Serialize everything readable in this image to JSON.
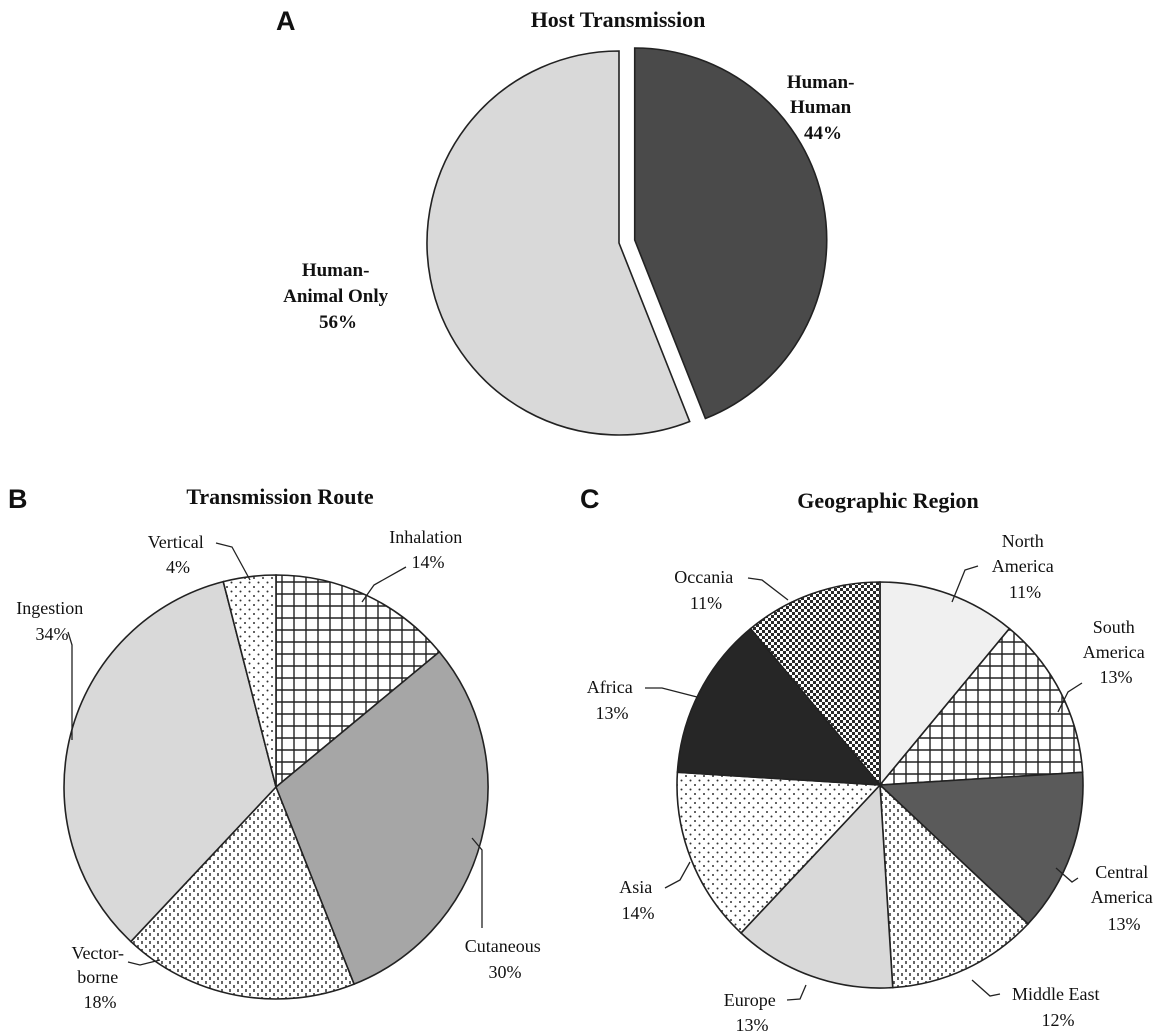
{
  "colors": {
    "dark": "#4a4a4a",
    "light": "#d9d9d9",
    "mid": "#a6a6a6",
    "black": "#262626",
    "slate": "#5a5a5a",
    "verylight": "#f0f0f0",
    "outline": "#222222"
  },
  "chart_data": [
    {
      "panel": "A",
      "type": "pie",
      "title": "Host Transmission",
      "slices": [
        {
          "label_lines": [
            "Human-",
            "Human"
          ],
          "value": 44,
          "value_label": "44%",
          "fill": "dark",
          "pattern": "solid",
          "exploded": true
        },
        {
          "label_lines": [
            "Human-",
            "Animal Only"
          ],
          "value": 56,
          "value_label": "56%",
          "fill": "light",
          "pattern": "solid",
          "exploded": false
        }
      ]
    },
    {
      "panel": "B",
      "type": "pie",
      "title": "Transmission Route",
      "slices": [
        {
          "label_lines": [
            "Inhalation"
          ],
          "value": 14,
          "value_label": "14%",
          "pattern": "grid"
        },
        {
          "label_lines": [
            "Cutaneous"
          ],
          "value": 30,
          "value_label": "30%",
          "fill": "mid",
          "pattern": "solid"
        },
        {
          "label_lines": [
            "Vector-",
            "borne"
          ],
          "value": 18,
          "value_label": "18%",
          "pattern": "dashes"
        },
        {
          "label_lines": [
            "Ingestion"
          ],
          "value": 34,
          "value_label": "34%",
          "fill": "light",
          "pattern": "solid"
        },
        {
          "label_lines": [
            "Vertical"
          ],
          "value": 4,
          "value_label": "4%",
          "pattern": "dots"
        }
      ]
    },
    {
      "panel": "C",
      "type": "pie",
      "title": "Geographic Region",
      "slices": [
        {
          "label_lines": [
            "North",
            "America"
          ],
          "value": 11,
          "value_label": "11%",
          "fill": "verylight",
          "pattern": "solid"
        },
        {
          "label_lines": [
            "South",
            "America"
          ],
          "value": 13,
          "value_label": "13%",
          "pattern": "grid"
        },
        {
          "label_lines": [
            "Central",
            "America"
          ],
          "value": 13,
          "value_label": "13%",
          "fill": "slate",
          "pattern": "solid"
        },
        {
          "label_lines": [
            "Middle East"
          ],
          "value": 12,
          "value_label": "12%",
          "pattern": "dashes"
        },
        {
          "label_lines": [
            "Europe"
          ],
          "value": 13,
          "value_label": "13%",
          "fill": "light",
          "pattern": "solid"
        },
        {
          "label_lines": [
            "Asia"
          ],
          "value": 14,
          "value_label": "14%",
          "pattern": "dots"
        },
        {
          "label_lines": [
            "Africa"
          ],
          "value": 13,
          "value_label": "13%",
          "fill": "black",
          "pattern": "solid"
        },
        {
          "label_lines": [
            "Occania"
          ],
          "value": 11,
          "value_label": "11%",
          "pattern": "checker"
        }
      ]
    }
  ]
}
